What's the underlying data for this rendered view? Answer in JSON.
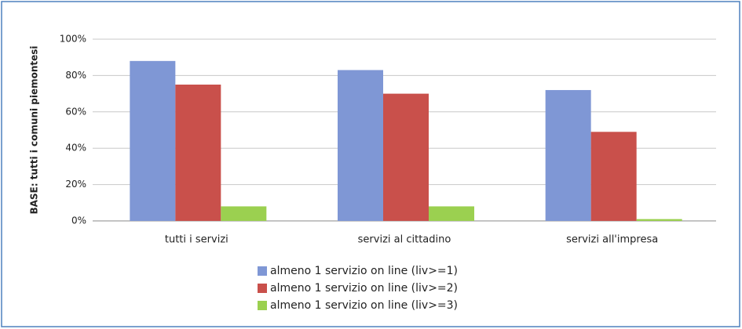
{
  "chart_data": {
    "type": "bar",
    "ylabel": "BASE: tutti i comuni piemontesi",
    "categories": [
      "tutti i servizi",
      "servizi al cittadino",
      "servizi all'impresa"
    ],
    "series": [
      {
        "name": "almeno 1 servizio on line (liv>=1)",
        "color": "#7f97d5",
        "values": [
          88,
          83,
          72
        ]
      },
      {
        "name": "almeno 1 servizio on line (liv>=2)",
        "color": "#c9504b",
        "values": [
          75,
          70,
          49
        ]
      },
      {
        "name": "almeno 1 servizio on line (liv>=3)",
        "color": "#9bd050",
        "values": [
          8,
          8,
          1
        ]
      }
    ],
    "ylim": [
      0,
      100
    ],
    "yticks": [
      {
        "value": 0,
        "label": "0%"
      },
      {
        "value": 20,
        "label": "20%"
      },
      {
        "value": 40,
        "label": "40%"
      },
      {
        "value": 60,
        "label": "60%"
      },
      {
        "value": 80,
        "label": "80%"
      },
      {
        "value": 100,
        "label": "100%"
      }
    ],
    "grid": true,
    "legend": "bottom"
  }
}
